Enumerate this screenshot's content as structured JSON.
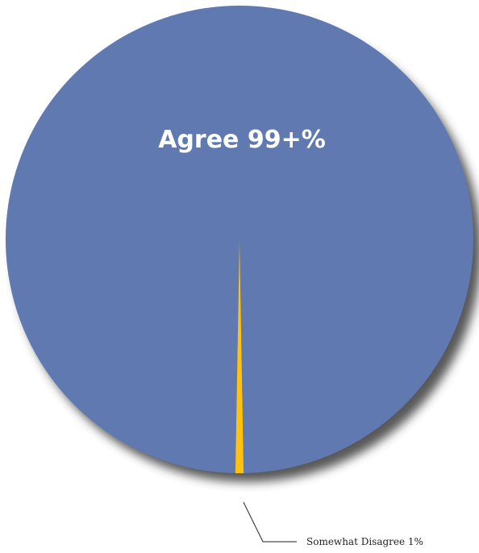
{
  "chart_data": {
    "type": "pie",
    "slices": [
      {
        "label": "Agree 99+%",
        "value": 99,
        "color": "#6079B1"
      },
      {
        "label": "Somewhat Disagree 1%",
        "value": 1,
        "color": "#FFC20E"
      }
    ]
  },
  "labels": {
    "agree": "Agree 99+%",
    "disagree": "Somewhat Disagree 1%"
  },
  "colors": {
    "agree": "#6079B1",
    "disagree": "#FFC20E",
    "shadow": "#3a3a3a",
    "leader_line": "#222222"
  }
}
